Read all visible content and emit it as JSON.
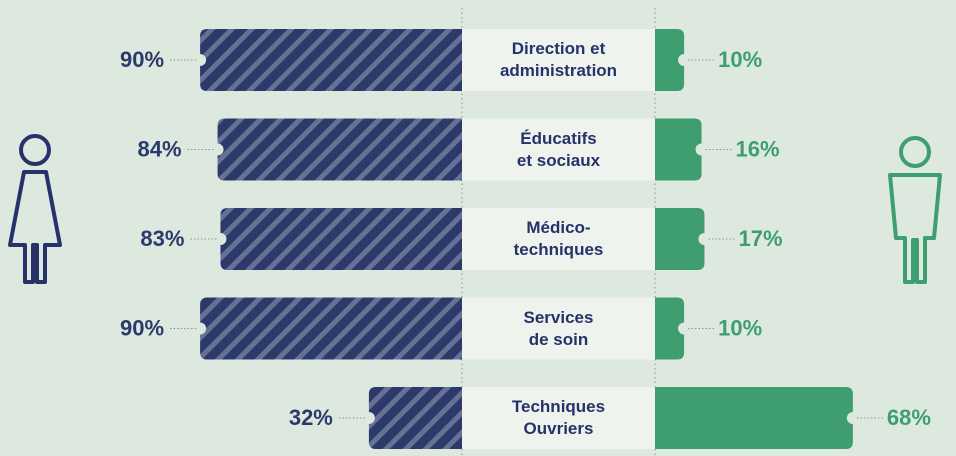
{
  "chart_data": {
    "type": "bar",
    "categories": [
      "Direction et\nadministration",
      "Éducatifs\net sociaux",
      "Médico-\ntechniques",
      "Services\nde soin",
      "Techniques\nOuvriers"
    ],
    "series": [
      {
        "color": "#2b3a6b",
        "values": [
          90,
          84,
          83,
          90,
          32
        ],
        "value_labels": [
          "90%",
          "84%",
          "83%",
          "90%",
          "32%"
        ]
      },
      {
        "color": "#3f9e6f",
        "values": [
          10,
          16,
          17,
          10,
          68
        ],
        "value_labels": [
          "10%",
          "16%",
          "17%",
          "10%",
          "68%"
        ]
      }
    ],
    "xlim": [
      0,
      100
    ]
  }
}
